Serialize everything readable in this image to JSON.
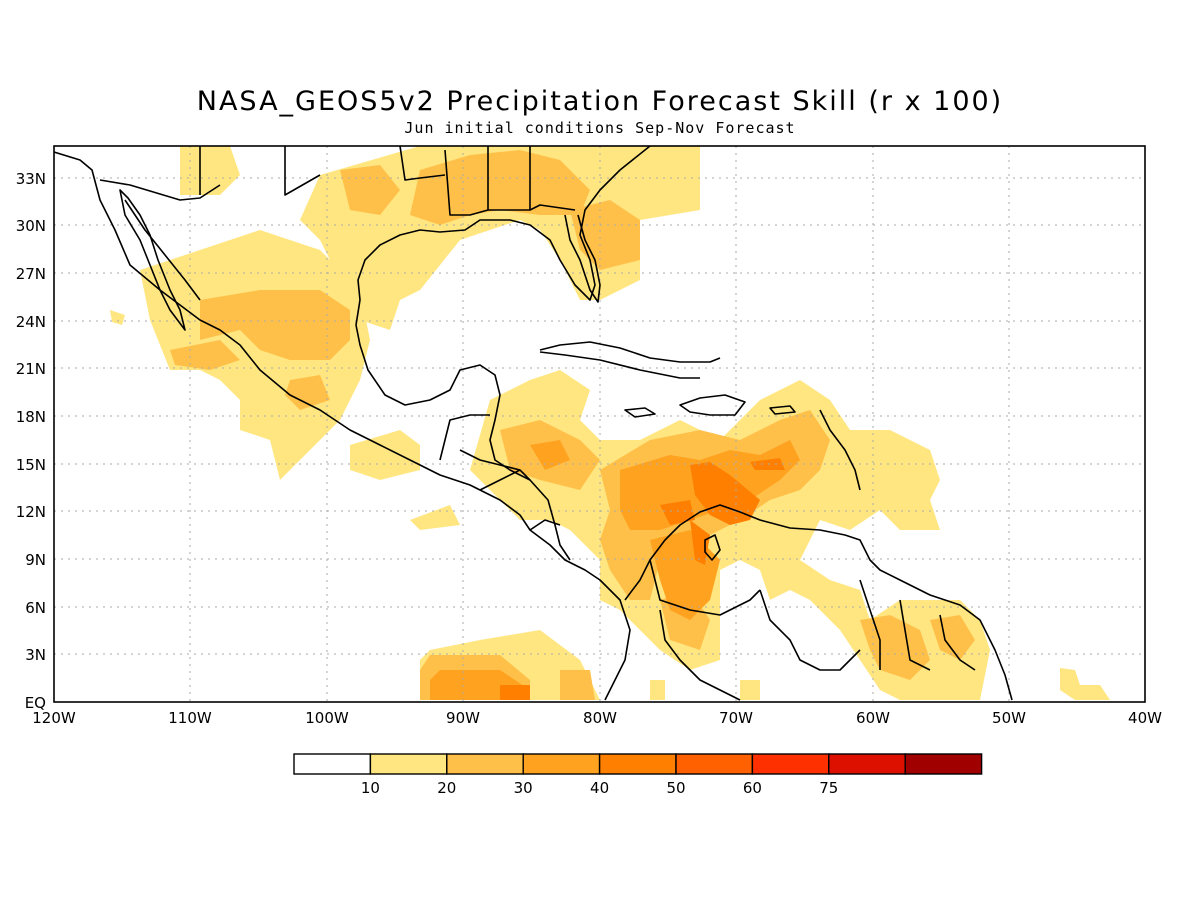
{
  "header": {
    "title": "NASA_GEOS5v2 Precipitation Forecast Skill (r x 100)",
    "subtitle": "Jun initial conditions  Sep-Nov Forecast"
  },
  "map": {
    "region": "Central America and Caribbean",
    "lon_range": [
      -120,
      -40
    ],
    "lat_range": [
      0,
      35
    ],
    "lon_labels": [
      "120W",
      "110W",
      "100W",
      "90W",
      "80W",
      "70W",
      "60W",
      "50W",
      "40W"
    ],
    "lat_labels": [
      "EQ",
      "3N",
      "6N",
      "9N",
      "12N",
      "15N",
      "18N",
      "21N",
      "24N",
      "27N",
      "30N",
      "33N"
    ],
    "grid": "dotted"
  },
  "colorbar": {
    "labels": [
      "10",
      "20",
      "30",
      "40",
      "50",
      "60",
      "75"
    ],
    "colors": [
      "#ffffff",
      "#ffe680",
      "#ffc04a",
      "#ffa220",
      "#ff8000",
      "#ff6000",
      "#ff3000",
      "#dd1000",
      "#a00000"
    ]
  }
}
